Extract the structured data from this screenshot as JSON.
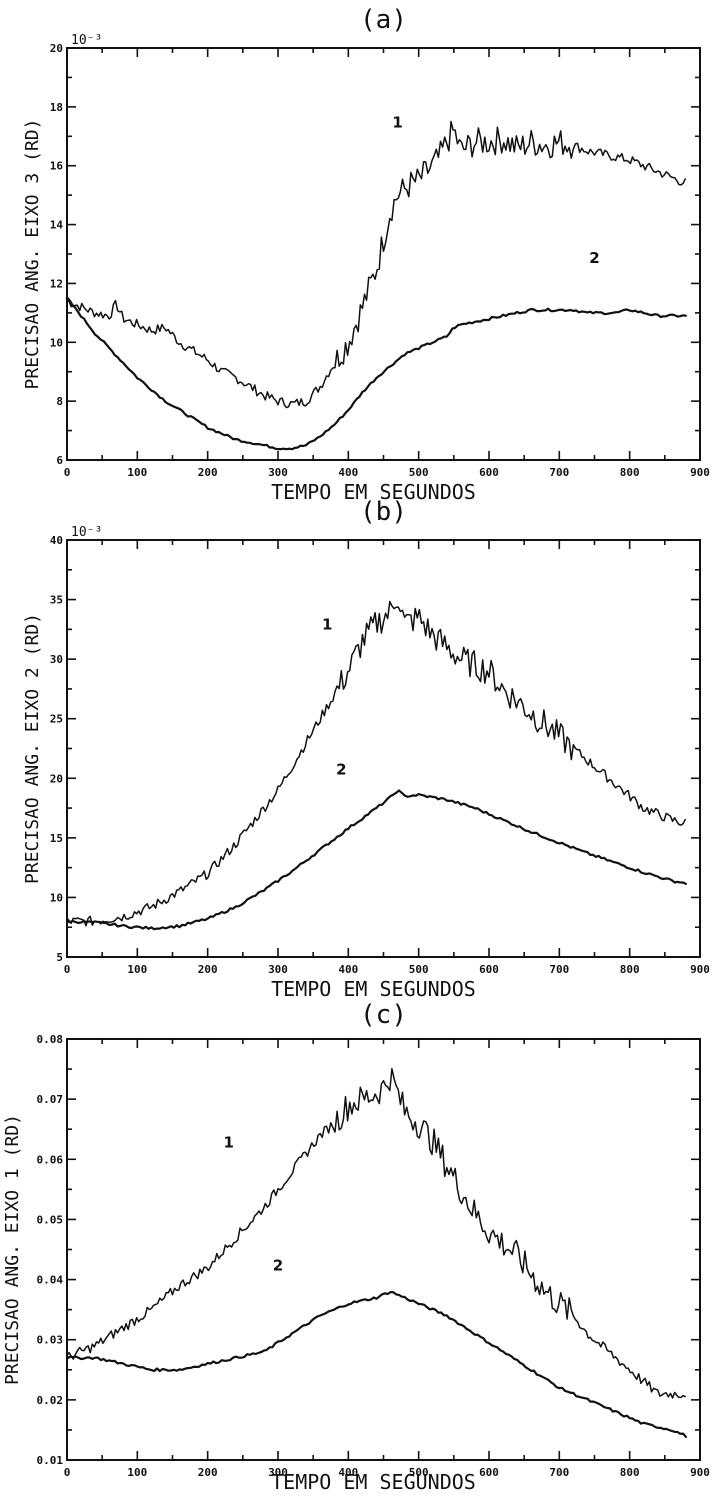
{
  "chart_data": [
    {
      "type": "line",
      "panel_label": "(a)",
      "xlabel": "TEMPO EM SEGUNDOS",
      "ylabel": "PRECISAO ANG. EIXO 3 (RD)",
      "multiplier_label": "10⁻³",
      "xlim": [
        0,
        900
      ],
      "ylim": [
        6,
        20
      ],
      "x_ticks": [
        0,
        100,
        200,
        300,
        400,
        500,
        600,
        700,
        800,
        900
      ],
      "x_tick_labels": [
        "0",
        "100",
        "200",
        "300",
        "400",
        "500",
        "600",
        "700",
        "800",
        "900"
      ],
      "y_ticks": [
        6,
        8,
        10,
        12,
        14,
        16,
        18,
        20
      ],
      "y_tick_labels": [
        "6",
        "8",
        "10",
        "12",
        "14",
        "16",
        "18",
        "20"
      ],
      "grid": false,
      "series": [
        {
          "name": "1",
          "label_at": [
            470,
            17.3
          ],
          "x": [
            0,
            20,
            40,
            60,
            70,
            80,
            100,
            120,
            140,
            160,
            180,
            200,
            220,
            240,
            260,
            280,
            300,
            320,
            340,
            360,
            380,
            400,
            420,
            440,
            450,
            460,
            470,
            480,
            490,
            500,
            520,
            530,
            540,
            550,
            560,
            580,
            600,
            620,
            640,
            660,
            680,
            700,
            720,
            740,
            760,
            780,
            800,
            820,
            840,
            860,
            880
          ],
          "y": [
            11.4,
            11.2,
            11.0,
            10.9,
            11.3,
            10.8,
            10.6,
            10.4,
            10.5,
            10.0,
            9.7,
            9.4,
            9.0,
            8.8,
            8.5,
            8.2,
            8.0,
            7.9,
            8.0,
            8.5,
            9.3,
            10.0,
            11.2,
            12.5,
            13.5,
            14.5,
            15.0,
            15.2,
            15.4,
            15.5,
            16.0,
            16.3,
            16.8,
            17.2,
            16.5,
            16.8,
            16.8,
            16.9,
            16.6,
            16.8,
            16.7,
            16.8,
            16.7,
            16.5,
            16.4,
            16.3,
            16.2,
            16.0,
            15.8,
            15.6,
            15.4
          ]
        },
        {
          "name": "2",
          "label_at": [
            750,
            12.7
          ],
          "x": [
            0,
            20,
            40,
            60,
            80,
            100,
            120,
            140,
            160,
            180,
            200,
            220,
            240,
            260,
            280,
            300,
            320,
            340,
            360,
            380,
            400,
            420,
            440,
            460,
            480,
            500,
            520,
            540,
            550,
            560,
            580,
            600,
            620,
            640,
            660,
            680,
            700,
            720,
            740,
            760,
            780,
            800,
            820,
            840,
            860,
            880
          ],
          "y": [
            11.5,
            10.9,
            10.3,
            9.8,
            9.3,
            8.8,
            8.4,
            8.0,
            7.7,
            7.4,
            7.1,
            6.9,
            6.7,
            6.6,
            6.5,
            6.4,
            6.4,
            6.5,
            6.8,
            7.2,
            7.7,
            8.3,
            8.8,
            9.2,
            9.6,
            9.8,
            10.0,
            10.2,
            10.5,
            10.6,
            10.7,
            10.8,
            10.9,
            11.0,
            11.1,
            11.1,
            11.1,
            11.1,
            11.0,
            11.0,
            11.0,
            11.1,
            11.0,
            10.9,
            10.9,
            10.9
          ]
        }
      ]
    },
    {
      "type": "line",
      "panel_label": "(b)",
      "xlabel": "TEMPO EM SEGUNDOS",
      "ylabel": "PRECISAO ANG. EIXO 2 (RD)",
      "multiplier_label": "10⁻³",
      "xlim": [
        0,
        900
      ],
      "ylim": [
        5,
        40
      ],
      "x_ticks": [
        0,
        100,
        200,
        300,
        400,
        500,
        600,
        700,
        800,
        900
      ],
      "x_tick_labels": [
        "0",
        "100",
        "200",
        "300",
        "400",
        "500",
        "600",
        "700",
        "800",
        "900"
      ],
      "y_ticks": [
        5,
        10,
        15,
        20,
        25,
        30,
        35,
        40
      ],
      "y_tick_labels": [
        "5",
        "10",
        "15",
        "20",
        "25",
        "30",
        "35",
        "40"
      ],
      "grid": false,
      "series": [
        {
          "name": "1",
          "label_at": [
            370,
            32.5
          ],
          "x": [
            0,
            40,
            80,
            120,
            160,
            200,
            240,
            280,
            300,
            320,
            340,
            360,
            380,
            400,
            420,
            440,
            460,
            470,
            480,
            500,
            520,
            540,
            560,
            580,
            600,
            620,
            640,
            660,
            680,
            700,
            720,
            740,
            760,
            780,
            800,
            820,
            840,
            860,
            880
          ],
          "y": [
            8,
            8,
            8.4,
            9.2,
            10.5,
            12.0,
            14.5,
            17.5,
            19.0,
            21.0,
            23.0,
            25.0,
            27.0,
            29.0,
            31.5,
            33.0,
            34.0,
            35.5,
            33.0,
            33.5,
            32.0,
            31.0,
            30.0,
            29.5,
            29.0,
            27.5,
            26.5,
            25.5,
            24.5,
            23.5,
            22.5,
            21.5,
            20.5,
            19.5,
            18.5,
            17.5,
            17.0,
            16.5,
            16.2
          ]
        },
        {
          "name": "2",
          "label_at": [
            390,
            20.3
          ],
          "x": [
            0,
            40,
            80,
            120,
            160,
            200,
            240,
            280,
            320,
            360,
            400,
            440,
            460,
            470,
            480,
            500,
            540,
            580,
            620,
            660,
            700,
            740,
            780,
            820,
            860,
            880
          ],
          "y": [
            8,
            7.9,
            7.6,
            7.4,
            7.6,
            8.2,
            9.2,
            10.6,
            12.2,
            14.0,
            15.8,
            17.5,
            18.4,
            19.0,
            18.5,
            18.6,
            18.2,
            17.5,
            16.5,
            15.5,
            14.6,
            13.7,
            12.9,
            12.1,
            11.4,
            11.2
          ]
        }
      ]
    },
    {
      "type": "line",
      "panel_label": "(c)",
      "xlabel": "TEMPO EM SEGUNDOS",
      "ylabel": "PRECISAO ANG. EIXO 1 (RD)",
      "xlim": [
        0,
        900
      ],
      "ylim": [
        0.01,
        0.08
      ],
      "x_ticks": [
        0,
        100,
        200,
        300,
        400,
        500,
        600,
        700,
        800,
        900
      ],
      "x_tick_labels": [
        "0",
        "100",
        "200",
        "300",
        "400",
        "500",
        "600",
        "700",
        "800",
        "900"
      ],
      "y_ticks": [
        0.01,
        0.02,
        0.03,
        0.04,
        0.05,
        0.06,
        0.07,
        0.08
      ],
      "y_tick_labels": [
        "0.01",
        "0.02",
        "0.03",
        "0.04",
        "0.05",
        "0.06",
        "0.07",
        "0.08"
      ],
      "grid": false,
      "series": [
        {
          "name": "1",
          "label_at": [
            230,
            0.062
          ],
          "x": [
            0,
            40,
            80,
            120,
            160,
            200,
            240,
            280,
            300,
            320,
            340,
            360,
            380,
            400,
            420,
            440,
            450,
            460,
            470,
            480,
            500,
            520,
            540,
            560,
            580,
            600,
            620,
            640,
            660,
            680,
            700,
            720,
            740,
            760,
            780,
            800,
            820,
            840,
            860,
            880
          ],
          "y": [
            0.027,
            0.029,
            0.032,
            0.035,
            0.039,
            0.042,
            0.047,
            0.052,
            0.055,
            0.058,
            0.061,
            0.064,
            0.066,
            0.069,
            0.07,
            0.071,
            0.072,
            0.074,
            0.071,
            0.068,
            0.066,
            0.063,
            0.059,
            0.055,
            0.051,
            0.048,
            0.046,
            0.044,
            0.041,
            0.038,
            0.036,
            0.034,
            0.031,
            0.029,
            0.027,
            0.025,
            0.023,
            0.021,
            0.021,
            0.021
          ]
        },
        {
          "name": "2",
          "label_at": [
            300,
            0.0415
          ],
          "x": [
            0,
            40,
            80,
            120,
            160,
            200,
            240,
            280,
            320,
            360,
            400,
            440,
            460,
            480,
            500,
            540,
            580,
            620,
            660,
            700,
            740,
            780,
            820,
            860,
            880
          ],
          "y": [
            0.027,
            0.027,
            0.026,
            0.025,
            0.025,
            0.026,
            0.027,
            0.028,
            0.031,
            0.034,
            0.036,
            0.037,
            0.038,
            0.037,
            0.036,
            0.034,
            0.031,
            0.028,
            0.025,
            0.022,
            0.02,
            0.018,
            0.016,
            0.015,
            0.014
          ]
        }
      ]
    }
  ]
}
